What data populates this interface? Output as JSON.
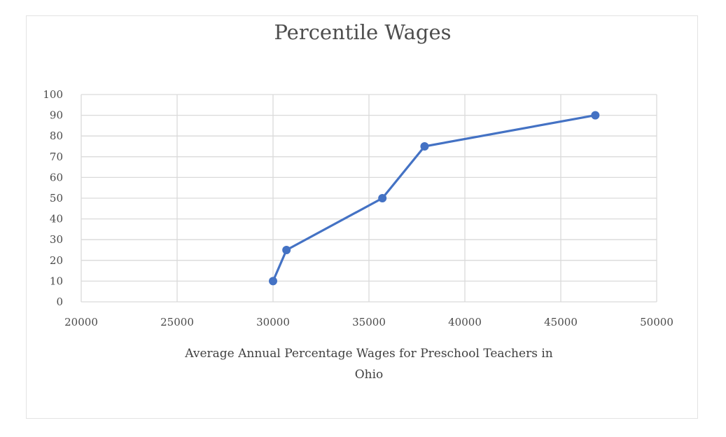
{
  "chart_data": {
    "type": "line",
    "title": "Percentile Wages",
    "xlabel_lines": [
      "Average Annual Percentage Wages for Preschool Teachers in",
      "Ohio"
    ],
    "ylabel": "",
    "xlim": [
      20000,
      50000
    ],
    "ylim": [
      0,
      100
    ],
    "x_ticks": [
      20000,
      25000,
      30000,
      35000,
      40000,
      45000,
      50000
    ],
    "y_ticks": [
      0,
      10,
      20,
      30,
      40,
      50,
      60,
      70,
      80,
      90,
      100
    ],
    "grid": true,
    "legend": "none",
    "series": [
      {
        "color": "#4472c4",
        "x": [
          30000,
          30700,
          35700,
          37900,
          46800
        ],
        "y": [
          10,
          25,
          50,
          75,
          90
        ]
      }
    ]
  }
}
